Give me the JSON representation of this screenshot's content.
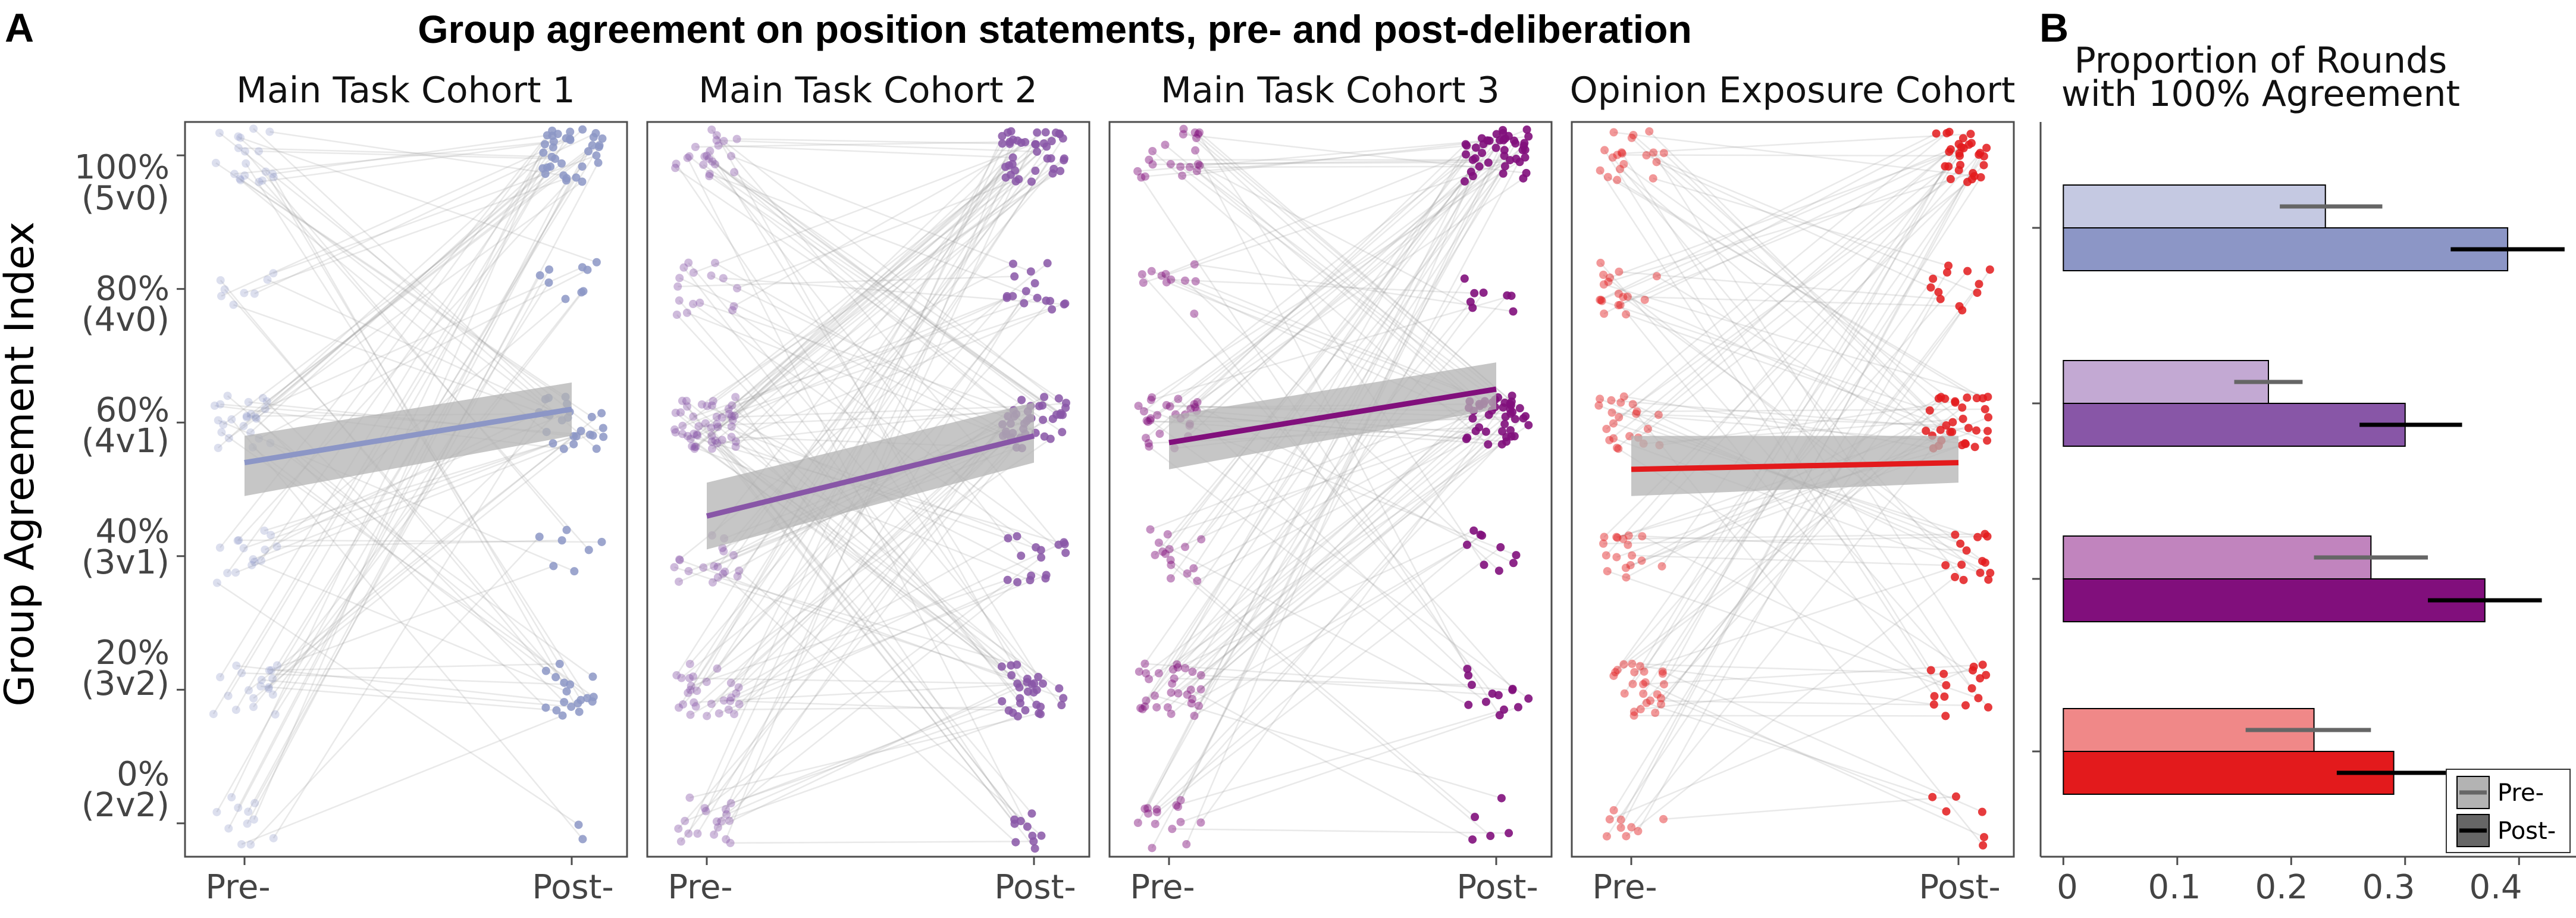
{
  "figure": {
    "title": "Group agreement on position statements, pre- and post-deliberation",
    "panel_a_letter": "A",
    "panel_b_letter": "B",
    "colors": {
      "cohort_1": "#8c96c6",
      "cohort_2": "#8856a7",
      "cohort_3": "#810f7c",
      "opinion_exposure": "#e31a1c",
      "connector_lines": "#999999",
      "ribbon": "#b3b3b3"
    }
  },
  "chart_data": [
    {
      "type": "scatter",
      "subtype": "paired slopegraph with jitter and regression line",
      "panels": [
        {
          "title": "Main Task Cohort 1",
          "color": "#8c96c6",
          "regression": {
            "pre": 54,
            "post": 62,
            "ci_pre": [
              49,
              58
            ],
            "ci_post": [
              58,
              66
            ]
          }
        },
        {
          "title": "Main Task Cohort 2",
          "color": "#8856a7",
          "regression": {
            "pre": 46,
            "post": 58,
            "ci_pre": [
              41,
              51
            ],
            "ci_post": [
              54,
              63
            ]
          }
        },
        {
          "title": "Main Task Cohort 3",
          "color": "#810f7c",
          "regression": {
            "pre": 57,
            "post": 65,
            "ci_pre": [
              53,
              61
            ],
            "ci_post": [
              62,
              69
            ]
          }
        },
        {
          "title": "Opinion Exposure Cohort",
          "color": "#e31a1c",
          "regression": {
            "pre": 53,
            "post": 54,
            "ci_pre": [
              49,
              58
            ],
            "ci_post": [
              51,
              58
            ]
          }
        }
      ],
      "x_categories": [
        "Pre-",
        "Post-"
      ],
      "y_ticks": [
        {
          "value": 100,
          "label": "100%",
          "sublabel": "(5v0)"
        },
        {
          "value": 80,
          "label": "80%",
          "sublabel": "(4v0)"
        },
        {
          "value": 60,
          "label": "60%",
          "sublabel": "(4v1)"
        },
        {
          "value": 40,
          "label": "40%",
          "sublabel": "(3v1)"
        },
        {
          "value": 20,
          "label": "20%",
          "sublabel": "(3v2)"
        },
        {
          "value": 0,
          "label": "0%",
          "sublabel": "(2v2)"
        }
      ],
      "ylabel": "Group Agreement Index",
      "ylim": [
        -5,
        105
      ]
    },
    {
      "type": "bar",
      "orientation": "horizontal",
      "title": "Proportion of Rounds with 100% Agreement",
      "title_line1": "Proportion of Rounds",
      "title_line2": "with 100% Agreement",
      "groups": [
        "Main Task Cohort 1",
        "Main Task Cohort 2",
        "Main Task Cohort 3",
        "Opinion Exposure Cohort"
      ],
      "series": [
        {
          "name": "Pre-",
          "values": [
            0.23,
            0.18,
            0.27,
            0.22
          ],
          "error_low": [
            0.19,
            0.15,
            0.22,
            0.16
          ],
          "error_high": [
            0.28,
            0.21,
            0.32,
            0.27
          ]
        },
        {
          "name": "Post-",
          "values": [
            0.39,
            0.3,
            0.37,
            0.29
          ],
          "error_low": [
            0.34,
            0.26,
            0.32,
            0.24
          ],
          "error_high": [
            0.44,
            0.35,
            0.42,
            0.34
          ]
        }
      ],
      "colors": {
        "pre": [
          "#c5c9e2",
          "#c3a9d3",
          "#c184be",
          "#f08888"
        ],
        "post": [
          "#8c96c6",
          "#8856a7",
          "#810f7c",
          "#e31a1c"
        ]
      },
      "x_ticks": [
        0,
        0.1,
        0.2,
        0.3,
        0.4
      ],
      "x_tick_labels": [
        "0",
        "0.1",
        "0.2",
        "0.3",
        "0.4"
      ],
      "xlim": [
        -0.02,
        0.45
      ],
      "legend": {
        "placement": "bottom-right",
        "entries": [
          "Pre-",
          "Post-"
        ]
      }
    }
  ]
}
